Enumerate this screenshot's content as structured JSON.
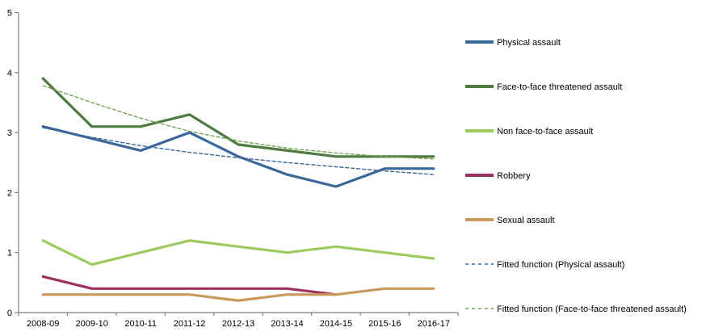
{
  "page": {
    "background": "#ffffff"
  },
  "axis": {
    "line_color": "#808080",
    "text_color": "#000000"
  },
  "chart_data": {
    "type": "line",
    "title": "",
    "xlabel": "",
    "ylabel": "",
    "ylim": [
      0,
      5
    ],
    "yticks": [
      0,
      1,
      2,
      3,
      4,
      5
    ],
    "grid": false,
    "legend_position": "right",
    "categories": [
      "2008-09",
      "2009-10",
      "2010-11",
      "2011-12",
      "2012-13",
      "2013-14",
      "2014-15",
      "2015-16",
      "2016-17"
    ],
    "series": [
      {
        "name": "Physical assault",
        "color": "#38679C",
        "line_style": "solid",
        "values": [
          3.1,
          2.9,
          2.7,
          3.0,
          2.6,
          2.3,
          2.1,
          2.4,
          2.4
        ]
      },
      {
        "name": "Face-to-face threatened assault",
        "color": "#4E7B40",
        "line_style": "solid",
        "values": [
          3.9,
          3.1,
          3.1,
          3.3,
          2.8,
          2.7,
          2.6,
          2.6,
          2.6
        ]
      },
      {
        "name": "Non face-to-face assault",
        "color": "#9CCA5E",
        "line_style": "solid",
        "values": [
          1.2,
          0.8,
          1.0,
          1.2,
          1.1,
          1.0,
          1.1,
          1.0,
          0.9
        ]
      },
      {
        "name": "Robbery",
        "color": "#9E3060",
        "line_style": "solid",
        "values": [
          0.6,
          0.4,
          0.4,
          0.4,
          0.4,
          0.4,
          0.3,
          null,
          null
        ]
      },
      {
        "name": "Sexual assault",
        "color": "#C9995C",
        "line_style": "solid",
        "values": [
          0.3,
          0.3,
          0.3,
          0.3,
          0.2,
          0.3,
          0.3,
          0.4,
          0.4
        ]
      },
      {
        "name": "Fitted function (Physical assault)",
        "color": "#38679C",
        "line_style": "dashed",
        "values": [
          3.08,
          2.92,
          2.78,
          2.67,
          2.58,
          2.5,
          2.43,
          2.36,
          2.3
        ]
      },
      {
        "name": "Fitted function (Face-to-face threatened assault)",
        "color": "#74A455",
        "line_style": "dashed",
        "values": [
          3.78,
          3.5,
          3.24,
          3.02,
          2.86,
          2.74,
          2.66,
          2.6,
          2.56
        ]
      }
    ]
  }
}
